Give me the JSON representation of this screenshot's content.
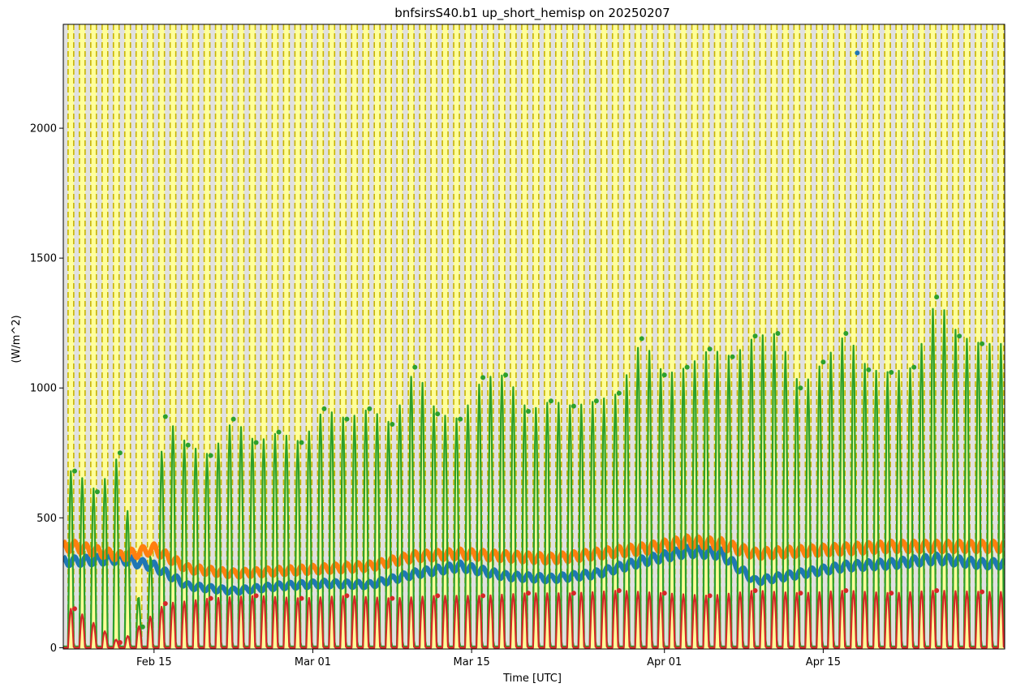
{
  "chart_data": {
    "type": "line",
    "title": "bnfsirsS40.b1 up_short_hemisp on 20250207",
    "xlabel": "Time [UTC]",
    "ylabel": "(W/m^2)",
    "x_ticks": [
      "Feb 15",
      "Mar 01",
      "Mar 15",
      "Apr 01",
      "Apr 15"
    ],
    "y_ticks": [
      "0",
      "500",
      "1000",
      "1500",
      "2000"
    ],
    "xlim": [
      "2025-02-07",
      "2025-05-01"
    ],
    "ylim": [
      -5,
      2400
    ],
    "night_shading": true,
    "series": [
      {
        "color": "#1f77b4",
        "x": [
          "2025-02-08",
          "2025-02-12",
          "2025-02-15",
          "2025-02-18",
          "2025-02-22",
          "2025-02-26",
          "2025-03-02",
          "2025-03-06",
          "2025-03-10",
          "2025-03-14",
          "2025-03-18",
          "2025-03-22",
          "2025-03-26",
          "2025-03-30",
          "2025-04-03",
          "2025-04-06",
          "2025-04-09",
          "2025-04-13",
          "2025-04-17",
          "2025-04-21",
          "2025-04-25",
          "2025-04-29"
        ],
        "y": [
          350,
          360,
          330,
          250,
          230,
          250,
          260,
          255,
          300,
          330,
          290,
          280,
          300,
          350,
          390,
          380,
          270,
          300,
          330,
          340,
          360,
          340
        ]
      },
      {
        "color": "#ff7f0e",
        "x": [
          "2025-02-08",
          "2025-02-12",
          "2025-02-15",
          "2025-02-18",
          "2025-02-22",
          "2025-02-26",
          "2025-03-02",
          "2025-03-06",
          "2025-03-10",
          "2025-03-14",
          "2025-03-18",
          "2025-03-22",
          "2025-03-26",
          "2025-03-30",
          "2025-04-03",
          "2025-04-06",
          "2025-04-09",
          "2025-04-13",
          "2025-04-17",
          "2025-04-21",
          "2025-04-25",
          "2025-04-29"
        ],
        "y": [
          410,
          370,
          400,
          320,
          300,
          310,
          320,
          330,
          370,
          380,
          370,
          360,
          380,
          400,
          430,
          420,
          380,
          390,
          400,
          410,
          410,
          410
        ]
      },
      {
        "color": "#2ca02c",
        "x": [
          "2025-02-08",
          "2025-02-10",
          "2025-02-12",
          "2025-02-14",
          "2025-02-16",
          "2025-02-18",
          "2025-02-20",
          "2025-02-22",
          "2025-02-24",
          "2025-02-26",
          "2025-02-28",
          "2025-03-02",
          "2025-03-04",
          "2025-03-06",
          "2025-03-08",
          "2025-03-10",
          "2025-03-12",
          "2025-03-14",
          "2025-03-16",
          "2025-03-18",
          "2025-03-20",
          "2025-03-22",
          "2025-03-24",
          "2025-03-26",
          "2025-03-28",
          "2025-03-30",
          "2025-04-01",
          "2025-04-03",
          "2025-04-05",
          "2025-04-07",
          "2025-04-09",
          "2025-04-11",
          "2025-04-13",
          "2025-04-15",
          "2025-04-17",
          "2025-04-19",
          "2025-04-21",
          "2025-04-23",
          "2025-04-25",
          "2025-04-27",
          "2025-04-29"
        ],
        "y": [
          680,
          600,
          750,
          80,
          890,
          780,
          740,
          880,
          790,
          830,
          790,
          920,
          880,
          920,
          860,
          1080,
          900,
          880,
          1040,
          1050,
          910,
          950,
          930,
          950,
          980,
          1190,
          1050,
          1080,
          1150,
          1120,
          1200,
          1210,
          1000,
          1100,
          1210,
          1070,
          1060,
          1080,
          1350,
          1200,
          1170
        ]
      },
      {
        "color": "#d62728",
        "x": [
          "2025-02-08",
          "2025-02-12",
          "2025-02-16",
          "2025-02-20",
          "2025-02-24",
          "2025-02-28",
          "2025-03-04",
          "2025-03-08",
          "2025-03-12",
          "2025-03-16",
          "2025-03-20",
          "2025-03-24",
          "2025-03-28",
          "2025-04-01",
          "2025-04-05",
          "2025-04-09",
          "2025-04-13",
          "2025-04-17",
          "2025-04-21",
          "2025-04-25",
          "2025-04-29"
        ],
        "y": [
          150,
          20,
          170,
          190,
          200,
          190,
          200,
          190,
          200,
          200,
          210,
          210,
          220,
          210,
          200,
          220,
          210,
          220,
          210,
          220,
          215
        ]
      }
    ],
    "outliers": [
      {
        "x": "2025-04-18",
        "y": 2290,
        "color": "#1f77b4"
      }
    ]
  }
}
